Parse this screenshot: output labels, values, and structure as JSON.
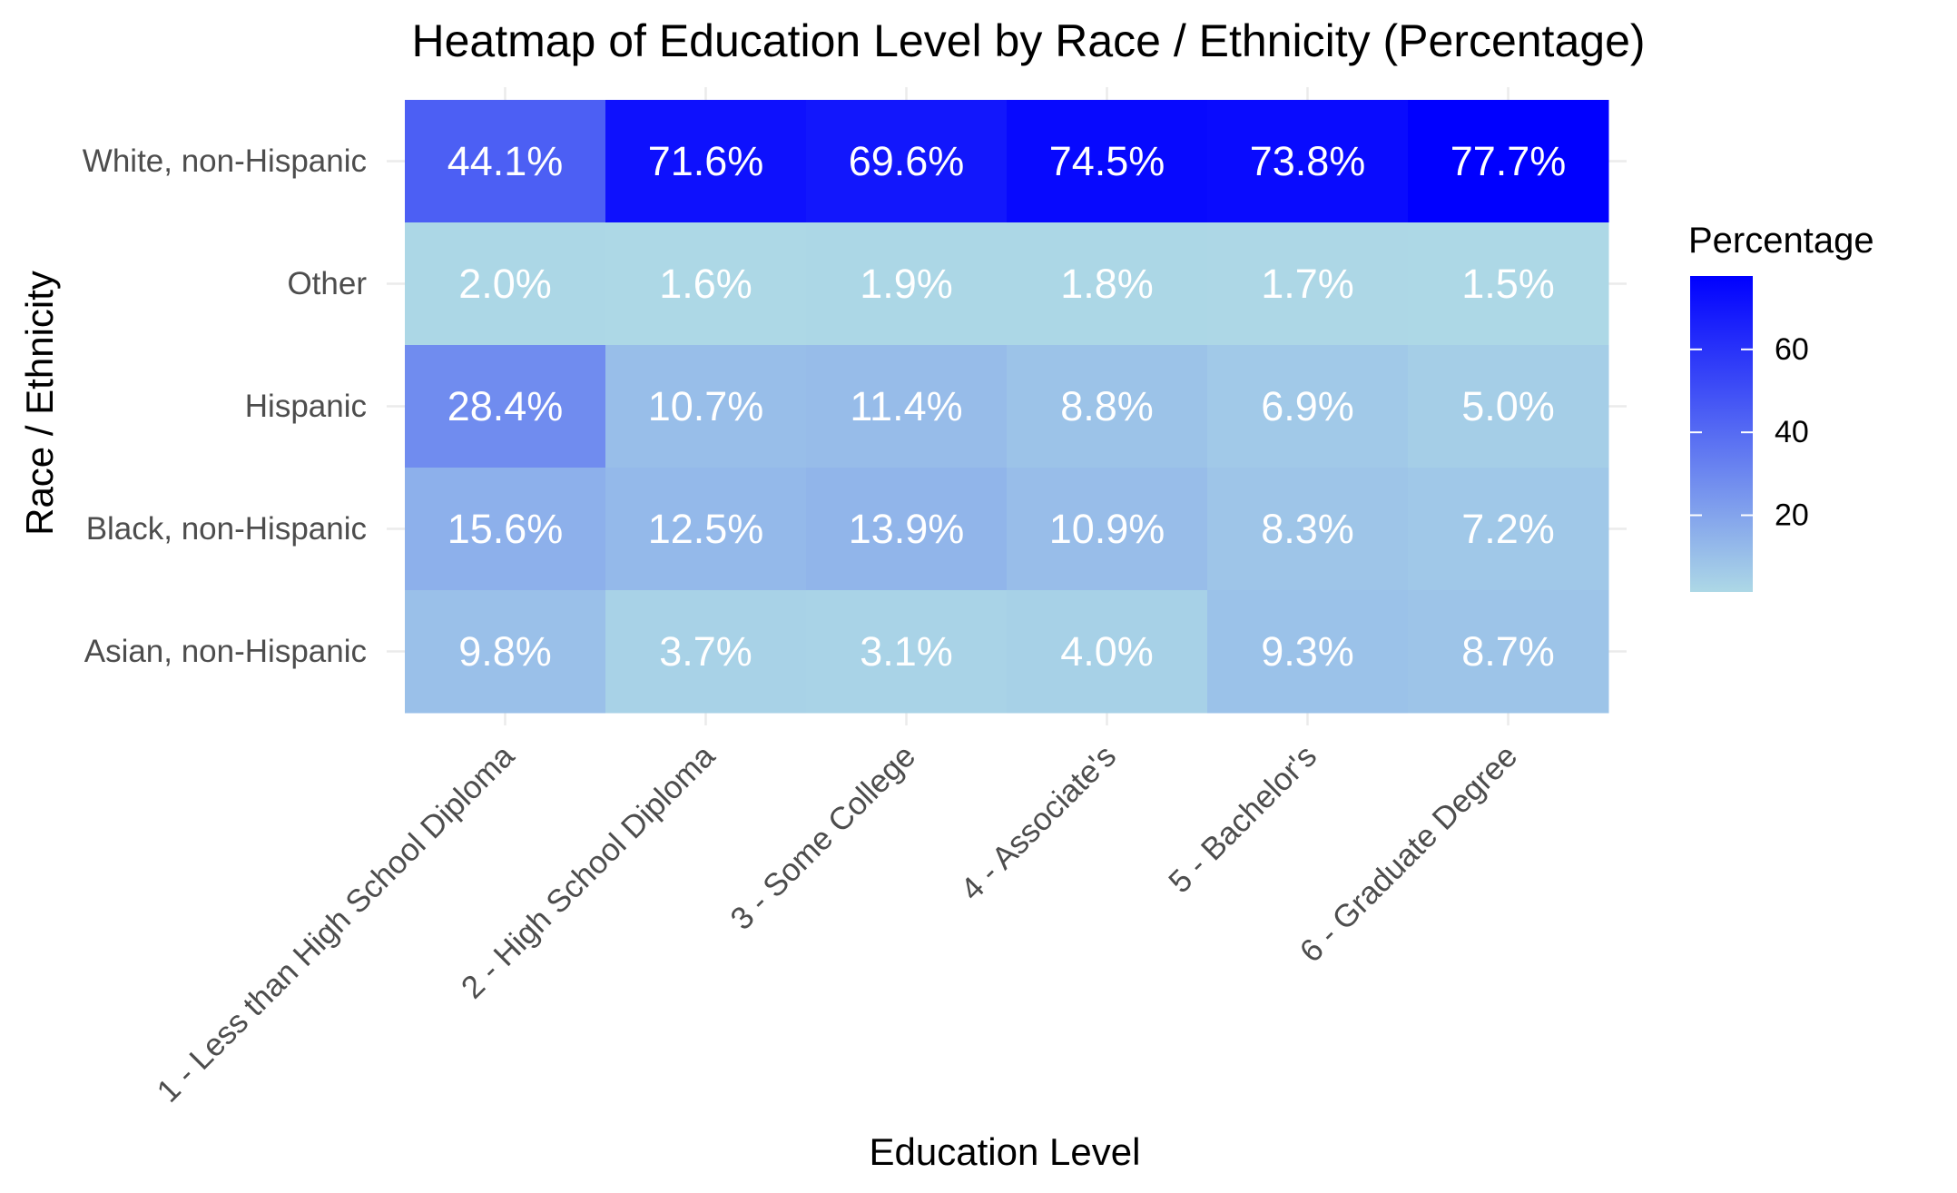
{
  "chart_data": {
    "type": "heatmap",
    "title": "Heatmap of Education Level by Race / Ethnicity (Percentage)",
    "xlabel": "Education Level",
    "ylabel": "Race / Ethnicity",
    "x_categories": [
      "1 - Less than High School Diploma",
      "2 - High School Diploma",
      "3 - Some College",
      "4 - Associate's",
      "5 - Bachelor's",
      "6 - Graduate Degree"
    ],
    "y_categories": [
      "White, non-Hispanic",
      "Other",
      "Hispanic",
      "Black, non-Hispanic",
      "Asian, non-Hispanic"
    ],
    "values": [
      [
        44.1,
        71.6,
        69.6,
        74.5,
        73.8,
        77.7
      ],
      [
        2.0,
        1.6,
        1.9,
        1.8,
        1.7,
        1.5
      ],
      [
        28.4,
        10.7,
        11.4,
        8.8,
        6.9,
        5.0
      ],
      [
        15.6,
        12.5,
        13.9,
        10.9,
        8.3,
        7.2
      ],
      [
        9.8,
        3.7,
        3.1,
        4.0,
        9.3,
        8.7
      ]
    ],
    "value_suffix": "%",
    "color_scale": {
      "low": "#add8e6",
      "high": "#0000ff"
    },
    "legend": {
      "title": "Percentage",
      "ticks": [
        20,
        40,
        60
      ],
      "placement": "right"
    },
    "grid": true
  }
}
